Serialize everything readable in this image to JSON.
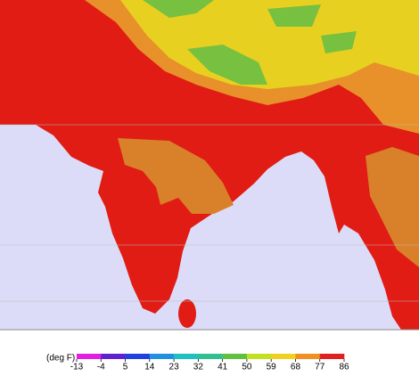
{
  "legend": {
    "label": "(deg F)",
    "ticks": [
      -13,
      -4,
      5,
      14,
      23,
      32,
      41,
      50,
      59,
      68,
      77,
      86
    ],
    "colors": [
      "#e020e0",
      "#6020d0",
      "#2040e0",
      "#2090e0",
      "#20c0c0",
      "#30c090",
      "#60c040",
      "#c0e020",
      "#f0d020",
      "#f09020",
      "#e02020"
    ]
  }
}
